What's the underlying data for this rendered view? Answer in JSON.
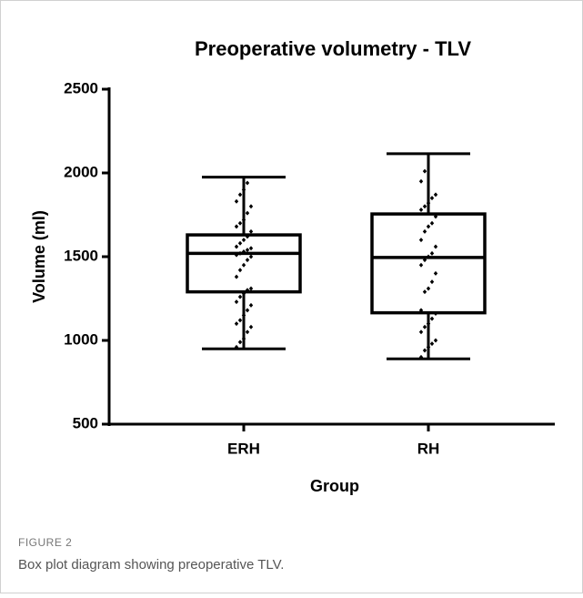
{
  "chart_data": {
    "type": "box",
    "title": "Preoperative volumetry - TLV",
    "y_label": "Volume (ml)",
    "x_label": "Group",
    "categories": [
      "ERH",
      "RH"
    ],
    "boxes": [
      {
        "min": 950,
        "q1": 1290,
        "median": 1520,
        "q3": 1630,
        "max": 1975
      },
      {
        "min": 890,
        "q1": 1165,
        "median": 1495,
        "q3": 1755,
        "max": 2115
      }
    ],
    "points": [
      [
        960,
        990,
        1010,
        1050,
        1080,
        1100,
        1120,
        1150,
        1180,
        1210,
        1230,
        1260,
        1280,
        1300,
        1310,
        1380,
        1420,
        1450,
        1480,
        1500,
        1510,
        1520,
        1530,
        1540,
        1550,
        1560,
        1580,
        1600,
        1620,
        1650,
        1680,
        1700,
        1720,
        1760,
        1800,
        1830,
        1870,
        1900,
        1940
      ],
      [
        900,
        940,
        960,
        980,
        1000,
        1050,
        1080,
        1100,
        1130,
        1160,
        1180,
        1290,
        1310,
        1350,
        1400,
        1450,
        1480,
        1500,
        1520,
        1560,
        1600,
        1650,
        1680,
        1700,
        1740,
        1780,
        1800,
        1820,
        1850,
        1870,
        1950,
        2010
      ]
    ],
    "color": "#000000",
    "ylim": [
      500,
      2500
    ],
    "yticks": [
      500,
      1000,
      1500,
      2000,
      2500
    ]
  },
  "figure_label": "FIGURE 2",
  "caption": "Box plot diagram showing preoperative TLV."
}
